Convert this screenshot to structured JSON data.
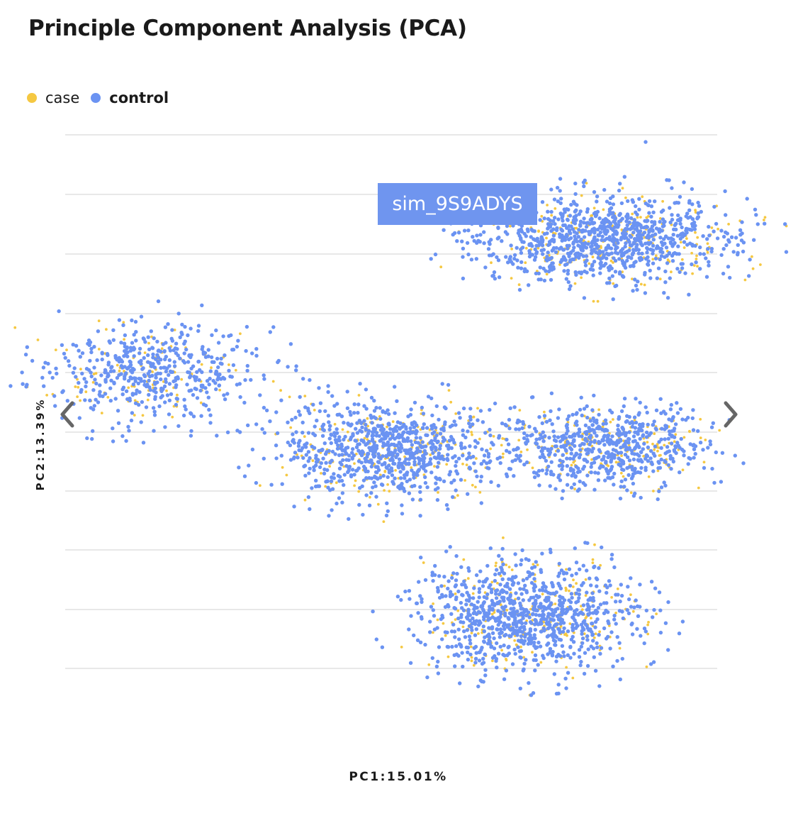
{
  "title": "Principle Component Analysis (PCA)",
  "legend": [
    {
      "label": "case",
      "color": "#f5c842"
    },
    {
      "label": "control",
      "color": "#6b93f2"
    }
  ],
  "tooltip": {
    "text": "sim_9S9ADYS"
  },
  "nav": {
    "prev_icon": "chevron-left-icon",
    "next_icon": "chevron-right-icon"
  },
  "chart_data": {
    "type": "scatter",
    "title": "Principle Component Analysis (PCA)",
    "xlabel": "PC1:15.01%",
    "ylabel": "PC2:13.39%",
    "grid": "horizontal",
    "legend_position": "top-left",
    "series": [
      {
        "name": "case",
        "color": "#f5c842"
      },
      {
        "name": "control",
        "color": "#6b93f2"
      }
    ],
    "clusters": [
      {
        "center": [
          -1.55,
          1.4
        ],
        "spread": [
          0.36,
          0.34
        ],
        "count": 600
      },
      {
        "center": [
          0.0,
          0.3
        ],
        "spread": [
          0.34,
          0.34
        ],
        "count": 1000
      },
      {
        "center": [
          1.35,
          3.25
        ],
        "spread": [
          0.4,
          0.3
        ],
        "count": 1150
      },
      {
        "center": [
          1.35,
          0.35
        ],
        "spread": [
          0.31,
          0.28
        ],
        "count": 750
      },
      {
        "center": [
          0.85,
          -2.0
        ],
        "spread": [
          0.34,
          0.38
        ],
        "count": 1150
      }
    ],
    "case_fraction": 0.18,
    "outliers": [
      [
        1.6,
        4.6
      ],
      [
        0.45,
        3.0
      ]
    ],
    "xlim": [
      -2.05,
      2.05
    ],
    "ylim": [
      -3.5,
      4.7
    ]
  }
}
